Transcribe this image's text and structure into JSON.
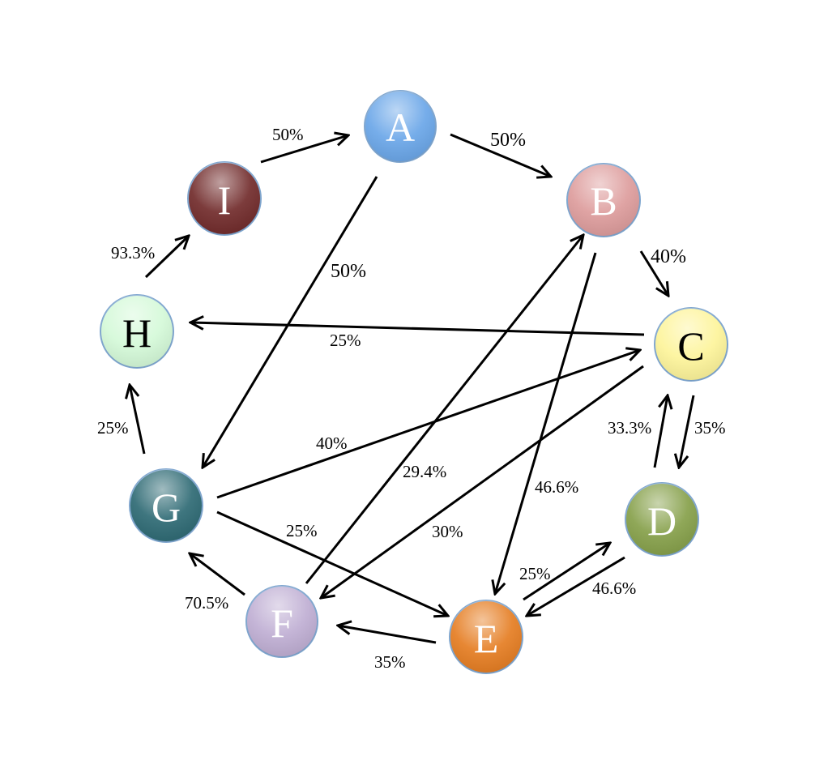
{
  "nodes": [
    {
      "id": "A",
      "label": "A",
      "color": "#6aa6e8"
    },
    {
      "id": "B",
      "label": "B",
      "color": "#dd9c9c"
    },
    {
      "id": "C",
      "label": "C",
      "color": "#fdf49a"
    },
    {
      "id": "D",
      "label": "D",
      "color": "#86a04a"
    },
    {
      "id": "E",
      "label": "E",
      "color": "#e57d22"
    },
    {
      "id": "F",
      "label": "F",
      "color": "#bfaed3"
    },
    {
      "id": "G",
      "label": "G",
      "color": "#2e6a74"
    },
    {
      "id": "H",
      "label": "H",
      "color": "#d4f9d8"
    },
    {
      "id": "I",
      "label": "I",
      "color": "#712b2b"
    }
  ],
  "edges": [
    {
      "id": "A-B",
      "from": "A",
      "to": "B",
      "label": "50%"
    },
    {
      "id": "A-G",
      "from": "A",
      "to": "G",
      "label": "50%"
    },
    {
      "id": "I-A",
      "from": "I",
      "to": "A",
      "label": "50%"
    },
    {
      "id": "H-I",
      "from": "H",
      "to": "I",
      "label": "93.3%"
    },
    {
      "id": "B-C",
      "from": "B",
      "to": "C",
      "label": "40%"
    },
    {
      "id": "C-H",
      "from": "C",
      "to": "H",
      "label": "25%"
    },
    {
      "id": "G-H",
      "from": "G",
      "to": "H",
      "label": "25%"
    },
    {
      "id": "G-C",
      "from": "G",
      "to": "C",
      "label": "40%"
    },
    {
      "id": "F-B",
      "from": "F",
      "to": "B",
      "label": "29.4%"
    },
    {
      "id": "B-E",
      "from": "B",
      "to": "E",
      "label": "46.6%"
    },
    {
      "id": "C-F",
      "from": "C",
      "to": "F",
      "label": "30%"
    },
    {
      "id": "C-D",
      "from": "C",
      "to": "D",
      "label": "35%"
    },
    {
      "id": "D-C",
      "from": "D",
      "to": "C",
      "label": "33.3%"
    },
    {
      "id": "G-E",
      "from": "G",
      "to": "E",
      "label": "25%"
    },
    {
      "id": "E-D",
      "from": "E",
      "to": "D",
      "label": "25%"
    },
    {
      "id": "D-E",
      "from": "D",
      "to": "E",
      "label": "46.6%"
    },
    {
      "id": "F-G",
      "from": "F",
      "to": "G",
      "label": "70.5%"
    },
    {
      "id": "E-F",
      "from": "E",
      "to": "F",
      "label": "35%"
    }
  ]
}
